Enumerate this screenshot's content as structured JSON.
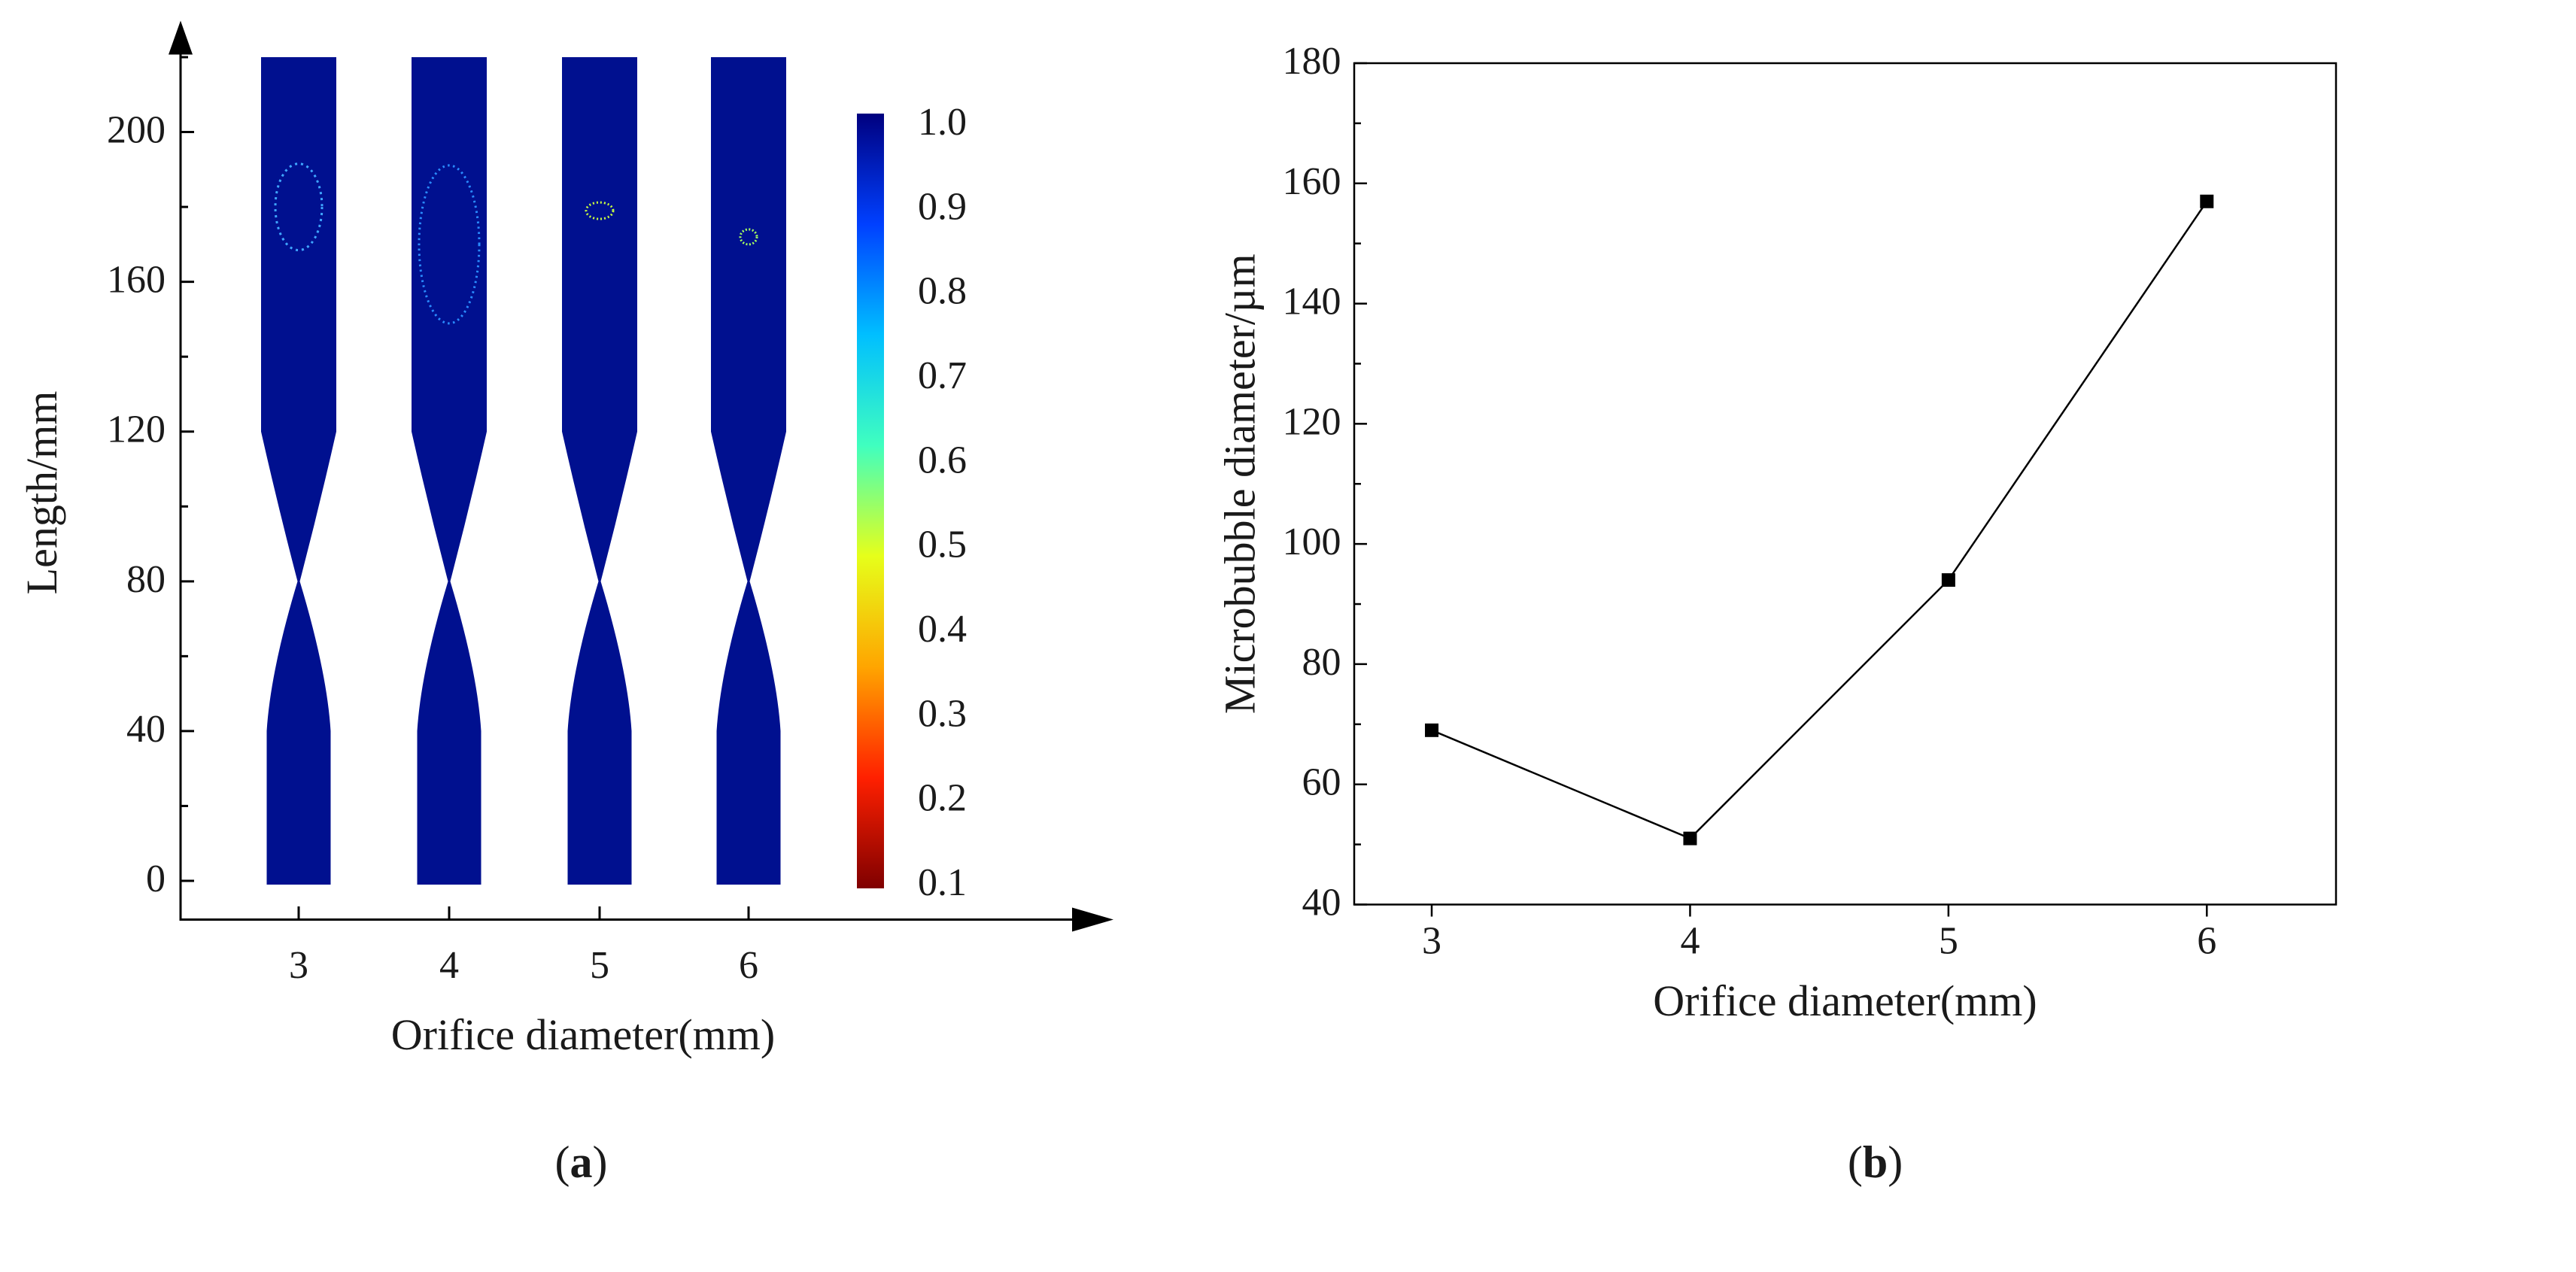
{
  "caption_a": {
    "open": "(",
    "letter": "a",
    "close": ")"
  },
  "caption_b": {
    "open": "(",
    "letter": "b",
    "close": ")"
  },
  "chart_data": [
    {
      "panel": "a",
      "type": "heatmap",
      "title": "",
      "xlabel": "Orifice diameter(mm)",
      "ylabel": "Length/mm",
      "categories": [
        "3",
        "4",
        "5",
        "6"
      ],
      "y_ticks": [
        "0",
        "40",
        "80",
        "120",
        "160",
        "200"
      ],
      "ylim": [
        0,
        220
      ],
      "colorbar": {
        "ticks": [
          "1.0",
          "0.9",
          "0.8",
          "0.7",
          "0.6",
          "0.5",
          "0.4",
          "0.3",
          "0.2",
          "0.1"
        ],
        "range": [
          0.1,
          1.0
        ],
        "colors": [
          "#7f0000",
          "#ff2000",
          "#ffa500",
          "#e6ff1a",
          "#40ffbf",
          "#00bfff",
          "#0040ff",
          "#00007f"
        ]
      },
      "geometry": {
        "tube_top_mm": 220,
        "throat_mm": 80,
        "contraction_start_mm": 120,
        "expansion_end_mm": 40,
        "bottom_mm": 0
      },
      "bubbles": [
        {
          "category": "3",
          "y_mm": 180,
          "description": "bubble outline near top"
        },
        {
          "category": "4",
          "y_mm": 170,
          "description": "large bubble outline"
        },
        {
          "category": "5",
          "y_mm": 179,
          "description": "small bubble cluster"
        },
        {
          "category": "6",
          "y_mm": 172,
          "description": "small bubble cluster"
        }
      ],
      "field_color": "#00108f"
    },
    {
      "panel": "b",
      "type": "line",
      "title": "",
      "xlabel": "Orifice diameter(mm)",
      "ylabel": "Microbubble diameter/µm",
      "x": [
        3,
        4,
        5,
        6
      ],
      "values": [
        69,
        51,
        94,
        157
      ],
      "x_ticks": [
        "3",
        "4",
        "5",
        "6"
      ],
      "y_ticks": [
        "40",
        "60",
        "80",
        "100",
        "120",
        "140",
        "160",
        "180"
      ],
      "xlim": [
        2.7,
        6.5
      ],
      "ylim": [
        40,
        180
      ],
      "marker": "square",
      "line_color": "#000000"
    }
  ]
}
